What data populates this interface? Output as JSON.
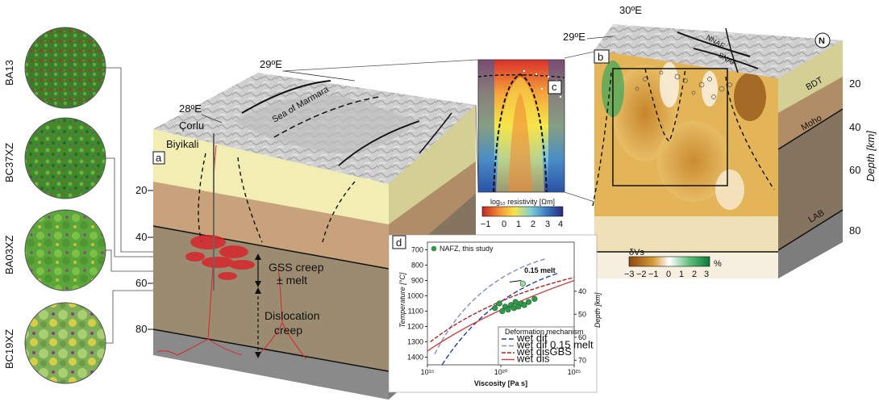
{
  "samples": [
    {
      "id": "BA13"
    },
    {
      "id": "BC37XZ"
    },
    {
      "id": "BA03XZ"
    },
    {
      "id": "BC19XZ"
    }
  ],
  "block_a": {
    "panel": "a",
    "lon_28": "28ºE",
    "lon_29": "29ºE",
    "place_corlu": "Çorlu",
    "place_biyikali": "Biyikali",
    "sea": "Sea of Marmara",
    "depth_ticks": [
      "20",
      "40",
      "60",
      "80"
    ],
    "gss_label": "GSS creep",
    "melt_label": "± melt",
    "dislocation_label_1": "Dislocation",
    "dislocation_label_2": "creep"
  },
  "panel_b": {
    "panel": "b",
    "lon_29": "29ºE",
    "lon_30": "30ºE",
    "fault_nnaf": "NNAF",
    "fault_snaf": "SNAF",
    "north_arrow": "N",
    "layer_bdt": "BDT",
    "layer_moho": "Moho",
    "layer_lab": "LAB",
    "depth_axis": "Depth [km]",
    "depth_ticks": [
      "20",
      "40",
      "60",
      "80"
    ],
    "colorbar_label": "δVs",
    "colorbar_ticks": [
      "−3",
      "−2",
      "−1",
      "0",
      "1",
      "2",
      "3"
    ],
    "colorbar_unit": "%"
  },
  "panel_c": {
    "panel": "c",
    "colorbar_label": "log₁₀ resistivity [Ωm]",
    "colorbar_ticks": [
      "−1",
      "0",
      "1",
      "2",
      "3",
      "4"
    ]
  },
  "panel_d": {
    "panel": "d",
    "legend_point": "NAFZ, this study",
    "melt_annot": "0.15 melt",
    "xlabel": "Viscosity [Pa s]",
    "ylabel": "Temperature [°C]",
    "ylabel_right": "Depth [km]",
    "x_ticks": [
      "10¹⁵",
      "10²⁰",
      "10²⁵"
    ],
    "y_ticks": [
      "700",
      "800",
      "900",
      "1000",
      "1100",
      "1200",
      "1300",
      "1400"
    ],
    "depth_ticks": [
      "40",
      "50",
      "60",
      "70"
    ],
    "legend_title": "Deformation mechanism",
    "legend_entries": [
      {
        "label": "wet dif",
        "color": "#1f3f9a",
        "dash": "6,3"
      },
      {
        "label": "wet dif 0.15 melt",
        "color": "#7f8fc0",
        "dash": "6,3"
      },
      {
        "label": "wet disGBS",
        "color": "#b22222",
        "dash": "5,2"
      },
      {
        "label": "wet dis",
        "color": "#d04040",
        "dash": ""
      }
    ]
  },
  "chart_data": {
    "type": "scatter",
    "x": [
      19.6,
      19.9,
      20.1,
      20.3,
      20.5,
      20.7,
      20.9,
      21.0,
      21.2,
      21.4,
      21.6,
      21.9,
      22.3,
      21.5
    ],
    "y": [
      1080,
      1050,
      1100,
      1070,
      1090,
      1060,
      1080,
      1040,
      1070,
      1050,
      1060,
      1040,
      1020,
      920
    ],
    "xlabel": "Viscosity [Pa s]",
    "ylabel": "Temperature [°C]",
    "xlim": [
      15,
      25
    ],
    "ylim": [
      1450,
      650
    ],
    "x_scale": "log"
  },
  "colors": {
    "crust_upper": "#f2eeb3",
    "crust_lower": "#c7a27b",
    "mantle": "#9b8b70",
    "asthen": "#8a8a8a",
    "melt": "#d8262b",
    "point": "#2e9b4a"
  }
}
